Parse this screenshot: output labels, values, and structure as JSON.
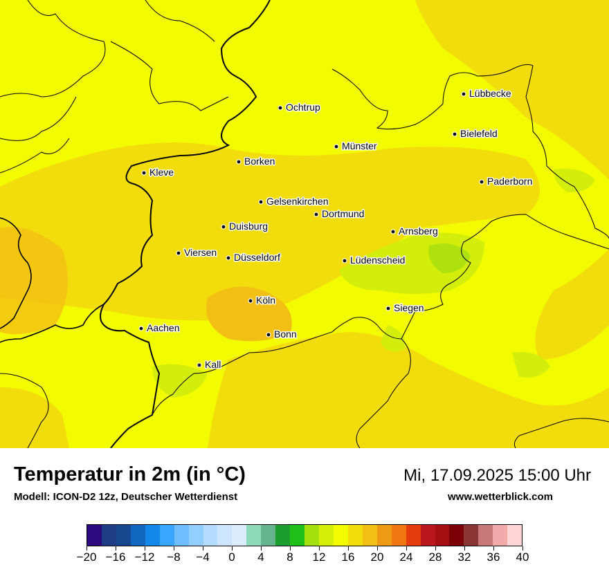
{
  "map": {
    "cities": [
      {
        "name": "Lübbecke"
      },
      {
        "name": "Ochtrup"
      },
      {
        "name": "Bielefeld"
      },
      {
        "name": "Münster"
      },
      {
        "name": "Borken"
      },
      {
        "name": "Kleve"
      },
      {
        "name": "Paderborn"
      },
      {
        "name": "Gelsenkirchen"
      },
      {
        "name": "Dortmund"
      },
      {
        "name": "Duisburg"
      },
      {
        "name": "Arnsberg"
      },
      {
        "name": "Viersen"
      },
      {
        "name": "Düsseldorf"
      },
      {
        "name": "Lüdenscheid"
      },
      {
        "name": "Köln"
      },
      {
        "name": "Siegen"
      },
      {
        "name": "Aachen"
      },
      {
        "name": "Bonn"
      },
      {
        "name": "Kall"
      }
    ],
    "colors": {
      "t16": "#f2fb00",
      "t18": "#f3dc0b",
      "t20": "#f2c014",
      "t14": "#d3ee0a",
      "t12": "#aee10e"
    }
  },
  "footer": {
    "title": "Temperatur in 2m (in °C)",
    "model": "Modell: ICON-D2 12z, Deutscher Wetterdienst",
    "datetime": "Mi, 17.09.2025 15:00 Uhr",
    "site": "www.wetterblick.com"
  },
  "legend": {
    "colors": [
      "#2c0a7d",
      "#1f3d86",
      "#17478e",
      "#1166c0",
      "#1188ea",
      "#3ba6ff",
      "#6ebeff",
      "#92cfff",
      "#b3dcff",
      "#cde6ff",
      "#dcecfd",
      "#8ed9b8",
      "#64b48f",
      "#1c9e2e",
      "#1ebf19",
      "#a4e10c",
      "#d5ee0a",
      "#f2fb00",
      "#f3dc0b",
      "#f2c014",
      "#ef9a14",
      "#f0760f",
      "#e63b0c",
      "#b9171c",
      "#a50e10",
      "#7c0007",
      "#8c3535",
      "#c87878",
      "#f0aaaa",
      "#fed6d6"
    ],
    "ticks": [
      "−20",
      "−16",
      "−12",
      "−8",
      "−4",
      "0",
      "4",
      "8",
      "12",
      "16",
      "20",
      "24",
      "28",
      "32",
      "36",
      "40"
    ]
  }
}
